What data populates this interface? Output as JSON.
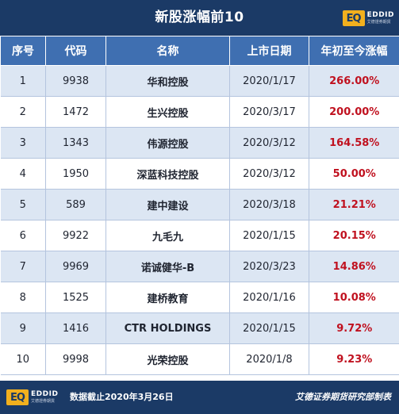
{
  "title": "新股涨幅前10",
  "logo": {
    "mark": "EQ",
    "text": "EDDID",
    "subtext": "艾德證券期貨"
  },
  "colors": {
    "header_bg": "#1b3a66",
    "column_header_bg": "#3f6fb1",
    "stripe": "#dce6f3",
    "gain": "#c0111f"
  },
  "columns": [
    "序号",
    "代码",
    "名称",
    "上市日期",
    "年初至今涨幅"
  ],
  "rows": [
    {
      "rank": "1",
      "code": "9938",
      "name": "华和控股",
      "date": "2020/1/17",
      "gain": "266.00%"
    },
    {
      "rank": "2",
      "code": "1472",
      "name": "生兴控股",
      "date": "2020/3/17",
      "gain": "200.00%"
    },
    {
      "rank": "3",
      "code": "1343",
      "name": "伟源控股",
      "date": "2020/3/12",
      "gain": "164.58%"
    },
    {
      "rank": "4",
      "code": "1950",
      "name": "深蓝科技控股",
      "date": "2020/3/12",
      "gain": "50.00%"
    },
    {
      "rank": "5",
      "code": "589",
      "name": "建中建设",
      "date": "2020/3/18",
      "gain": "21.21%"
    },
    {
      "rank": "6",
      "code": "9922",
      "name": "九毛九",
      "date": "2020/1/15",
      "gain": "20.15%"
    },
    {
      "rank": "7",
      "code": "9969",
      "name": "诺诚健华-B",
      "date": "2020/3/23",
      "gain": "14.86%"
    },
    {
      "rank": "8",
      "code": "1525",
      "name": "建桥教育",
      "date": "2020/1/16",
      "gain": "10.08%"
    },
    {
      "rank": "9",
      "code": "1416",
      "name": "CTR HOLDINGS",
      "date": "2020/1/15",
      "gain": "9.72%"
    },
    {
      "rank": "10",
      "code": "9998",
      "name": "光荣控股",
      "date": "2020/1/8",
      "gain": "9.23%"
    }
  ],
  "footer": {
    "note": "数据截止2020年3月26日",
    "source": "艾德证券期货研究部制表"
  }
}
